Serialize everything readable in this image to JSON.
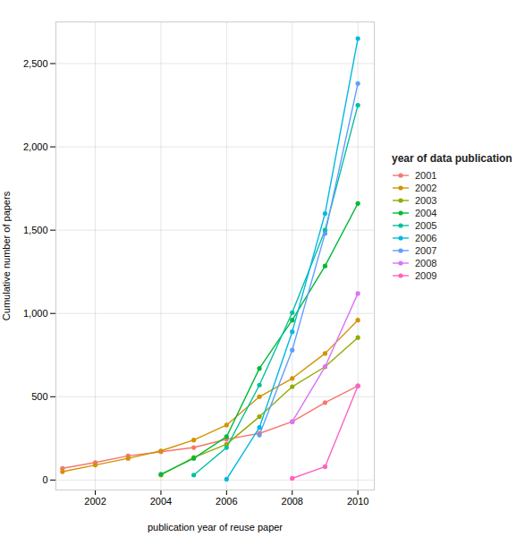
{
  "chart_data": {
    "type": "line",
    "xlabel": "publication year of reuse paper",
    "ylabel": "Cumulative number of papers",
    "legend_title": "year of data publication",
    "legend": "right",
    "grid": true,
    "marker": "circle",
    "xlim": [
      2000.8,
      2010.5
    ],
    "ylim": [
      -60,
      2750
    ],
    "xticks": [
      2002,
      2004,
      2006,
      2008,
      2010
    ],
    "yticks": [
      0,
      500,
      {
        "value": 1000,
        "label": "1,000"
      },
      {
        "value": 1500,
        "label": "1,500"
      },
      {
        "value": 2000,
        "label": "2,000"
      },
      {
        "value": 2500,
        "label": "2,500"
      }
    ],
    "series": [
      {
        "name": "2001",
        "color": "#f8766d",
        "x": [
          2001,
          2002,
          2003,
          2004,
          2005,
          2006,
          2007,
          2008,
          2009,
          2010
        ],
        "values": [
          70,
          105,
          145,
          170,
          195,
          245,
          280,
          350,
          465,
          565
        ]
      },
      {
        "name": "2002",
        "color": "#d39200",
        "x": [
          2001,
          2002,
          2003,
          2004,
          2005,
          2006,
          2007,
          2008,
          2009,
          2010
        ],
        "values": [
          50,
          90,
          130,
          175,
          240,
          330,
          500,
          610,
          760,
          960
        ]
      },
      {
        "name": "2003",
        "color": "#93aa00",
        "x": [
          2004,
          2005,
          2006,
          2007,
          2008,
          2009,
          2010
        ],
        "values": [
          30,
          135,
          215,
          380,
          560,
          680,
          855
        ]
      },
      {
        "name": "2004",
        "color": "#00ba38",
        "x": [
          2004,
          2005,
          2006,
          2007,
          2008,
          2009,
          2010
        ],
        "values": [
          35,
          130,
          260,
          670,
          960,
          1285,
          1660
        ]
      },
      {
        "name": "2005",
        "color": "#00c19f",
        "x": [
          2005,
          2006,
          2007,
          2008,
          2009,
          2010
        ],
        "values": [
          30,
          195,
          570,
          1005,
          1500,
          2250
        ]
      },
      {
        "name": "2006",
        "color": "#00b9e3",
        "x": [
          2006,
          2007,
          2008,
          2009,
          2010
        ],
        "values": [
          5,
          315,
          890,
          1600,
          2650
        ]
      },
      {
        "name": "2007",
        "color": "#619cff",
        "x": [
          2007,
          2008,
          2009,
          2010
        ],
        "values": [
          270,
          780,
          1480,
          2380
        ]
      },
      {
        "name": "2008",
        "color": "#db72fb",
        "x": [
          2008,
          2009,
          2010
        ],
        "values": [
          350,
          680,
          1120
        ]
      },
      {
        "name": "2009",
        "color": "#ff61c3",
        "x": [
          2008,
          2009,
          2010
        ],
        "values": [
          10,
          80,
          565
        ]
      }
    ]
  }
}
